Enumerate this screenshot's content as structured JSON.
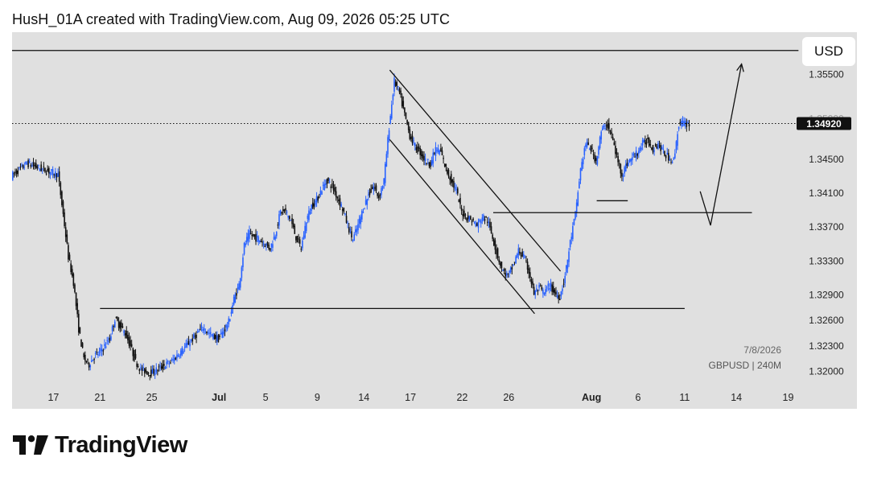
{
  "header": {
    "text": "HusH_01A created with TradingView.com, Aug 09, 2026 05:25 UTC"
  },
  "currency_button": {
    "label": "USD"
  },
  "watermark": {
    "date": "7/8/2026",
    "symbol_interval": "GBPUSD | 240M"
  },
  "footer": {
    "brand": "TradingView"
  },
  "colors": {
    "up": "#2962ff",
    "down": "#111111",
    "background": "#e0e0e0",
    "line": "#111111",
    "price_tag": "#111111"
  },
  "chart_data": {
    "type": "candlestick",
    "symbol": "GBPUSD",
    "interval": "240M",
    "current_price": 1.3492,
    "current_price_label": "1.34920",
    "partially_hidden_tick": "1.35000",
    "y_ticks": [
      "1.35500",
      "1.34500",
      "1.34100",
      "1.33700",
      "1.33300",
      "1.32900",
      "1.32600",
      "1.32300",
      "1.32000"
    ],
    "ylim": [
      1.319,
      1.3592
    ],
    "x_labels": [
      {
        "label": "17",
        "bar": 8,
        "bold": false
      },
      {
        "label": "21",
        "bar": 17,
        "bold": false
      },
      {
        "label": "25",
        "bar": 27,
        "bold": false
      },
      {
        "label": "Jul",
        "bar": 40,
        "bold": true
      },
      {
        "label": "5",
        "bar": 49,
        "bold": false
      },
      {
        "label": "9",
        "bar": 59,
        "bold": false
      },
      {
        "label": "14",
        "bar": 68,
        "bold": false
      },
      {
        "label": "17",
        "bar": 77,
        "bold": false
      },
      {
        "label": "22",
        "bar": 87,
        "bold": false
      },
      {
        "label": "26",
        "bar": 96,
        "bold": false
      },
      {
        "label": "Aug",
        "bar": 112,
        "bold": true
      },
      {
        "label": "6",
        "bar": 121,
        "bold": false
      },
      {
        "label": "11",
        "bar": 130,
        "bold": false
      },
      {
        "label": "14",
        "bar": 140,
        "bold": false
      },
      {
        "label": "19",
        "bar": 150,
        "bold": false
      }
    ],
    "close_path": [
      [
        0,
        1.343
      ],
      [
        3,
        1.3445
      ],
      [
        6,
        1.3438
      ],
      [
        9,
        1.3432
      ],
      [
        10,
        1.3385
      ],
      [
        11,
        1.3335
      ],
      [
        12,
        1.3305
      ],
      [
        13,
        1.325
      ],
      [
        14,
        1.3215
      ],
      [
        15,
        1.3208
      ],
      [
        16,
        1.3218
      ],
      [
        17,
        1.3222
      ],
      [
        19,
        1.3238
      ],
      [
        20,
        1.3262
      ],
      [
        22,
        1.3245
      ],
      [
        23,
        1.323
      ],
      [
        24,
        1.3212
      ],
      [
        25,
        1.3202
      ],
      [
        27,
        1.3198
      ],
      [
        29,
        1.3205
      ],
      [
        31,
        1.3212
      ],
      [
        33,
        1.3225
      ],
      [
        35,
        1.3238
      ],
      [
        37,
        1.3252
      ],
      [
        38,
        1.3245
      ],
      [
        40,
        1.3238
      ],
      [
        42,
        1.3258
      ],
      [
        43,
        1.3285
      ],
      [
        44,
        1.3302
      ],
      [
        45,
        1.3348
      ],
      [
        46,
        1.3362
      ],
      [
        47,
        1.3358
      ],
      [
        48,
        1.3355
      ],
      [
        50,
        1.3345
      ],
      [
        51,
        1.3362
      ],
      [
        52,
        1.3388
      ],
      [
        53,
        1.3388
      ],
      [
        54,
        1.3378
      ],
      [
        55,
        1.3358
      ],
      [
        56,
        1.3345
      ],
      [
        57,
        1.3378
      ],
      [
        58,
        1.3395
      ],
      [
        59,
        1.3402
      ],
      [
        60,
        1.3415
      ],
      [
        61,
        1.3425
      ],
      [
        62,
        1.3418
      ],
      [
        63,
        1.3405
      ],
      [
        64,
        1.3392
      ],
      [
        65,
        1.3372
      ],
      [
        66,
        1.3355
      ],
      [
        67,
        1.3372
      ],
      [
        68,
        1.3392
      ],
      [
        69,
        1.3408
      ],
      [
        70,
        1.3418
      ],
      [
        71,
        1.3405
      ],
      [
        72,
        1.3425
      ],
      [
        73,
        1.3488
      ],
      [
        74,
        1.3542
      ],
      [
        75,
        1.3528
      ],
      [
        76,
        1.3502
      ],
      [
        77,
        1.3478
      ],
      [
        78,
        1.3465
      ],
      [
        79,
        1.3458
      ],
      [
        80,
        1.3448
      ],
      [
        81,
        1.3445
      ],
      [
        82,
        1.3462
      ],
      [
        83,
        1.3458
      ],
      [
        84,
        1.3438
      ],
      [
        85,
        1.3425
      ],
      [
        86,
        1.3412
      ],
      [
        87,
        1.3388
      ],
      [
        88,
        1.3382
      ],
      [
        89,
        1.3378
      ],
      [
        90,
        1.3372
      ],
      [
        91,
        1.3382
      ],
      [
        92,
        1.3378
      ],
      [
        93,
        1.3358
      ],
      [
        94,
        1.3335
      ],
      [
        95,
        1.3318
      ],
      [
        96,
        1.3312
      ],
      [
        97,
        1.3325
      ],
      [
        98,
        1.3342
      ],
      [
        99,
        1.3335
      ],
      [
        100,
        1.3318
      ],
      [
        101,
        1.3292
      ],
      [
        102,
        1.3298
      ],
      [
        103,
        1.3292
      ],
      [
        104,
        1.3302
      ],
      [
        105,
        1.3292
      ],
      [
        106,
        1.3288
      ],
      [
        107,
        1.3312
      ],
      [
        108,
        1.3352
      ],
      [
        109,
        1.3385
      ],
      [
        110,
        1.3438
      ],
      [
        111,
        1.3468
      ],
      [
        112,
        1.3462
      ],
      [
        113,
        1.3448
      ],
      [
        114,
        1.3482
      ],
      [
        115,
        1.3492
      ],
      [
        116,
        1.3478
      ],
      [
        117,
        1.3452
      ],
      [
        118,
        1.3432
      ],
      [
        119,
        1.3445
      ],
      [
        120,
        1.3452
      ],
      [
        121,
        1.3458
      ],
      [
        122,
        1.3468
      ],
      [
        123,
        1.3472
      ],
      [
        124,
        1.3462
      ],
      [
        125,
        1.3468
      ],
      [
        126,
        1.3458
      ],
      [
        127,
        1.3452
      ],
      [
        128,
        1.3448
      ],
      [
        129,
        1.3492
      ],
      [
        130,
        1.3492
      ]
    ],
    "annotations": [
      {
        "type": "hline",
        "price": 1.3578,
        "from_bar": 0,
        "to_bar": 152
      },
      {
        "type": "segment",
        "from": [
          17,
          1.3274
        ],
        "to": [
          130,
          1.3274
        ]
      },
      {
        "type": "segment",
        "from": [
          93,
          1.3387
        ],
        "to": [
          143,
          1.3387
        ]
      },
      {
        "type": "segment",
        "from": [
          113,
          1.3401
        ],
        "to": [
          119,
          1.3401
        ]
      },
      {
        "type": "segment",
        "from": [
          73,
          1.3555
        ],
        "to": [
          106,
          1.3318
        ]
      },
      {
        "type": "segment",
        "from": [
          73,
          1.3473
        ],
        "to": [
          101,
          1.3268
        ]
      },
      {
        "type": "arrow",
        "points": [
          [
            133,
            1.3412
          ],
          [
            135,
            1.3372
          ],
          [
            141,
            1.3562
          ]
        ]
      }
    ]
  }
}
